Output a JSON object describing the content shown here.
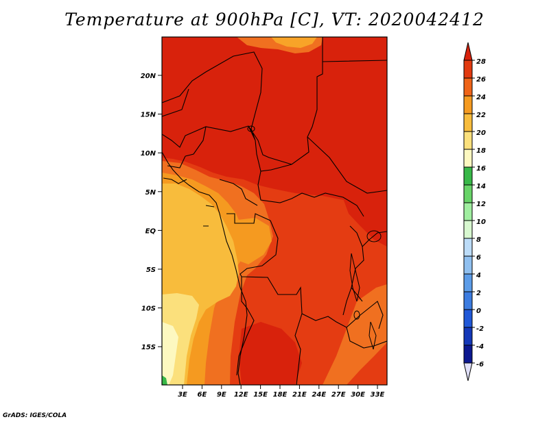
{
  "title": "Temperature at 900hPa [C], VT: 2020042412",
  "credit": "GrADS: IGES/COLA",
  "map": {
    "lat_labels": [
      "20N",
      "15N",
      "10N",
      "5N",
      "EQ",
      "5S",
      "10S",
      "15S"
    ],
    "lon_labels": [
      "3E",
      "6E",
      "9E",
      "12E",
      "15E",
      "18E",
      "21E",
      "24E",
      "27E",
      "30E",
      "33E"
    ]
  },
  "colorbar": {
    "labels": [
      "28",
      "26",
      "24",
      "22",
      "20",
      "18",
      "16",
      "14",
      "12",
      "10",
      "8",
      "6",
      "4",
      "2",
      "0",
      "-2",
      "-4",
      "-6"
    ],
    "colors": {
      "c28": "#d8220c",
      "c26": "#e23a10",
      "c24": "#ef6418",
      "c22": "#f59a20",
      "c20": "#f8bc3c",
      "c18": "#fbe07c",
      "c16": "#fdf8c0",
      "c14": "#38b848",
      "c12": "#68d468",
      "c10": "#a0eea0",
      "c8": "#d8f8d0",
      "c6": "#bcdcf8",
      "c4": "#90c0f0",
      "c2": "#5c9ce8",
      "c0": "#3c7ce0",
      "cm2": "#2058d8",
      "cm4": "#1438b8",
      "cm6": "#0c1890",
      "cmin": "#e0e0f8"
    }
  }
}
